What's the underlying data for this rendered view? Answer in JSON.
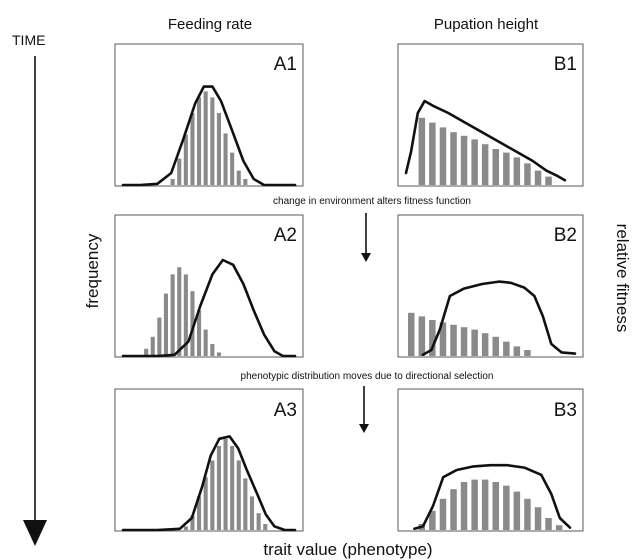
{
  "time_label": "TIME",
  "column_headers": [
    "Feeding rate",
    "Pupation height"
  ],
  "y_axis_left": "frequency",
  "y_axis_right": "relative fitness",
  "x_axis_label": "trait value (phenotype)",
  "notes": [
    "change in environment alters fitness function",
    "phenotypic distribution moves due to directional selection"
  ],
  "colors": {
    "bars": "#8a8a8a",
    "curve": "#111111",
    "frame": "#5a5a5a"
  },
  "panels": [
    {
      "id": "A1",
      "bars": [
        0,
        0,
        0,
        0,
        0,
        0,
        0,
        0.05,
        0.22,
        0.42,
        0.6,
        0.73,
        0.78,
        0.73,
        0.6,
        0.43,
        0.27,
        0.12,
        0.05,
        0,
        0,
        0,
        0,
        0,
        0,
        0
      ],
      "curve": [
        [
          0.0,
          0.0
        ],
        [
          0.1,
          0.0
        ],
        [
          0.2,
          0.01
        ],
        [
          0.28,
          0.1
        ],
        [
          0.35,
          0.38
        ],
        [
          0.42,
          0.68
        ],
        [
          0.47,
          0.82
        ],
        [
          0.52,
          0.82
        ],
        [
          0.57,
          0.7
        ],
        [
          0.63,
          0.47
        ],
        [
          0.7,
          0.2
        ],
        [
          0.76,
          0.05
        ],
        [
          0.82,
          0.0
        ],
        [
          1.0,
          0.0
        ]
      ]
    },
    {
      "id": "B1",
      "bars": [
        0,
        0.56,
        0.52,
        0.48,
        0.44,
        0.41,
        0.38,
        0.34,
        0.3,
        0.27,
        0.23,
        0.18,
        0.12,
        0.07,
        0,
        0
      ],
      "curve": [
        [
          0.0,
          0.1
        ],
        [
          0.03,
          0.28
        ],
        [
          0.07,
          0.6
        ],
        [
          0.11,
          0.7
        ],
        [
          0.16,
          0.66
        ],
        [
          0.25,
          0.6
        ],
        [
          0.35,
          0.52
        ],
        [
          0.45,
          0.44
        ],
        [
          0.55,
          0.36
        ],
        [
          0.65,
          0.28
        ],
        [
          0.75,
          0.2
        ],
        [
          0.83,
          0.12
        ],
        [
          0.89,
          0.08
        ],
        [
          0.94,
          0.04
        ]
      ]
    },
    {
      "id": "A2",
      "bars": [
        0,
        0,
        0,
        0.06,
        0.16,
        0.32,
        0.52,
        0.68,
        0.74,
        0.68,
        0.54,
        0.38,
        0.22,
        0.1,
        0.03,
        0,
        0,
        0,
        0,
        0,
        0,
        0,
        0,
        0,
        0,
        0
      ],
      "curve": [
        [
          0.0,
          0.0
        ],
        [
          0.2,
          0.0
        ],
        [
          0.3,
          0.01
        ],
        [
          0.38,
          0.12
        ],
        [
          0.45,
          0.42
        ],
        [
          0.52,
          0.68
        ],
        [
          0.58,
          0.8
        ],
        [
          0.64,
          0.76
        ],
        [
          0.7,
          0.6
        ],
        [
          0.76,
          0.38
        ],
        [
          0.82,
          0.18
        ],
        [
          0.88,
          0.04
        ],
        [
          0.93,
          0.0
        ],
        [
          1.0,
          0.0
        ]
      ]
    },
    {
      "id": "B2",
      "bars": [
        0.36,
        0.33,
        0.3,
        0.28,
        0.26,
        0.24,
        0.22,
        0.19,
        0.16,
        0.12,
        0.08,
        0.05,
        0,
        0,
        0,
        0
      ],
      "curve": [
        [
          0.1,
          0.01
        ],
        [
          0.15,
          0.05
        ],
        [
          0.2,
          0.22
        ],
        [
          0.26,
          0.5
        ],
        [
          0.34,
          0.56
        ],
        [
          0.45,
          0.6
        ],
        [
          0.55,
          0.62
        ],
        [
          0.62,
          0.61
        ],
        [
          0.7,
          0.57
        ],
        [
          0.76,
          0.5
        ],
        [
          0.81,
          0.33
        ],
        [
          0.86,
          0.1
        ],
        [
          0.92,
          0.03
        ],
        [
          1.0,
          0.02
        ]
      ]
    },
    {
      "id": "A3",
      "bars": [
        0,
        0,
        0,
        0,
        0,
        0,
        0,
        0,
        0,
        0.03,
        0.12,
        0.28,
        0.44,
        0.58,
        0.7,
        0.76,
        0.7,
        0.58,
        0.43,
        0.28,
        0.14,
        0.05,
        0,
        0,
        0,
        0
      ],
      "curve": [
        [
          0.0,
          0.0
        ],
        [
          0.2,
          0.0
        ],
        [
          0.33,
          0.01
        ],
        [
          0.4,
          0.1
        ],
        [
          0.46,
          0.36
        ],
        [
          0.51,
          0.62
        ],
        [
          0.56,
          0.76
        ],
        [
          0.62,
          0.78
        ],
        [
          0.67,
          0.68
        ],
        [
          0.72,
          0.5
        ],
        [
          0.78,
          0.3
        ],
        [
          0.83,
          0.13
        ],
        [
          0.88,
          0.03
        ],
        [
          0.94,
          0.0
        ],
        [
          1.0,
          0.0
        ]
      ]
    },
    {
      "id": "B3",
      "bars": [
        0,
        0.05,
        0.16,
        0.26,
        0.34,
        0.4,
        0.42,
        0.42,
        0.4,
        0.37,
        0.32,
        0.26,
        0.19,
        0.1,
        0.04,
        0
      ],
      "curve": [
        [
          0.05,
          0.01
        ],
        [
          0.1,
          0.03
        ],
        [
          0.16,
          0.2
        ],
        [
          0.22,
          0.44
        ],
        [
          0.3,
          0.5
        ],
        [
          0.4,
          0.53
        ],
        [
          0.5,
          0.54
        ],
        [
          0.6,
          0.54
        ],
        [
          0.7,
          0.52
        ],
        [
          0.8,
          0.46
        ],
        [
          0.86,
          0.3
        ],
        [
          0.91,
          0.1
        ],
        [
          0.97,
          0.02
        ]
      ]
    }
  ]
}
